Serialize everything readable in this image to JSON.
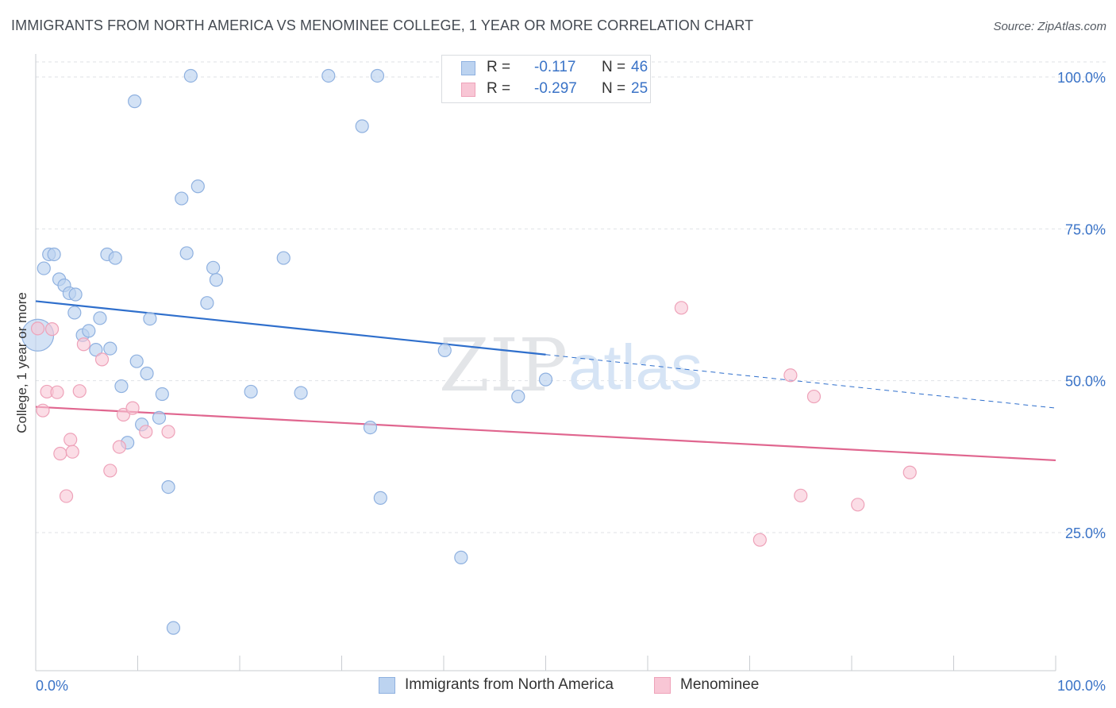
{
  "header": {
    "title": "IMMIGRANTS FROM NORTH AMERICA VS MENOMINEE COLLEGE, 1 YEAR OR MORE CORRELATION CHART",
    "source": "Source: ZipAtlas.com"
  },
  "watermark": {
    "zip": "ZIP",
    "atlas": "atlas"
  },
  "stats": {
    "r_label": "R =",
    "n_label": "N =",
    "rows": [
      {
        "r": "-0.117",
        "n": "46"
      },
      {
        "r": "-0.297",
        "n": "25"
      }
    ]
  },
  "legend": {
    "items": [
      {
        "label": "Immigrants from North America"
      },
      {
        "label": "Menominee"
      }
    ]
  },
  "colors": {
    "blue_fill": "#bcd3f0",
    "blue_stroke": "#8fb1e0",
    "blue_line": "#2f6fcc",
    "pink_fill": "#f8c6d5",
    "pink_stroke": "#eea2b9",
    "pink_line": "#e0668f",
    "tick_label": "#3a73c7",
    "grid": "#dfe2e6"
  },
  "chart_data": {
    "type": "scatter",
    "title": "IMMIGRANTS FROM NORTH AMERICA VS MENOMINEE COLLEGE, 1 YEAR OR MORE CORRELATION CHART",
    "xlabel": "",
    "ylabel": "College, 1 year or more",
    "xlim": [
      0,
      100
    ],
    "ylim": [
      0,
      102
    ],
    "x_tick_labels": [
      "0.0%",
      "100.0%"
    ],
    "y_ticks": [
      {
        "value": 25,
        "label": "25.0%"
      },
      {
        "value": 50,
        "label": "50.0%"
      },
      {
        "value": 75,
        "label": "75.0%"
      },
      {
        "value": 100,
        "label": "100.0%"
      }
    ],
    "grid": "horizontal dashed",
    "legend_position": "bottom-center",
    "series": [
      {
        "name": "Immigrants from North America",
        "r": -0.117,
        "n": 46,
        "trend": {
          "x0": 0,
          "y0": 63.1,
          "x1": 50,
          "y1": 54.3,
          "dashed_to_x": 100,
          "dashed_y1": 45.5
        },
        "points": [
          {
            "x": 0.2,
            "y": 57.5,
            "size": "large"
          },
          {
            "x": 0.8,
            "y": 68.5
          },
          {
            "x": 1.3,
            "y": 70.8
          },
          {
            "x": 1.8,
            "y": 70.8
          },
          {
            "x": 2.3,
            "y": 66.7
          },
          {
            "x": 2.8,
            "y": 65.7
          },
          {
            "x": 3.3,
            "y": 64.4
          },
          {
            "x": 3.9,
            "y": 64.2
          },
          {
            "x": 3.8,
            "y": 61.2
          },
          {
            "x": 4.6,
            "y": 57.5
          },
          {
            "x": 5.2,
            "y": 58.2
          },
          {
            "x": 5.9,
            "y": 55.1
          },
          {
            "x": 6.3,
            "y": 60.3
          },
          {
            "x": 7.0,
            "y": 70.8
          },
          {
            "x": 7.8,
            "y": 70.2
          },
          {
            "x": 7.3,
            "y": 55.3
          },
          {
            "x": 8.4,
            "y": 49.1
          },
          {
            "x": 9.0,
            "y": 39.8
          },
          {
            "x": 9.7,
            "y": 96.0
          },
          {
            "x": 9.9,
            "y": 53.2
          },
          {
            "x": 10.4,
            "y": 42.8
          },
          {
            "x": 10.9,
            "y": 51.2
          },
          {
            "x": 11.2,
            "y": 60.2
          },
          {
            "x": 12.1,
            "y": 43.9
          },
          {
            "x": 12.4,
            "y": 47.8
          },
          {
            "x": 13.0,
            "y": 32.5
          },
          {
            "x": 13.5,
            "y": 9.3
          },
          {
            "x": 14.3,
            "y": 80.0
          },
          {
            "x": 14.8,
            "y": 71.0
          },
          {
            "x": 15.2,
            "y": 100.2
          },
          {
            "x": 15.9,
            "y": 82.0
          },
          {
            "x": 16.8,
            "y": 62.8
          },
          {
            "x": 17.4,
            "y": 68.6
          },
          {
            "x": 17.7,
            "y": 66.6
          },
          {
            "x": 21.1,
            "y": 48.2
          },
          {
            "x": 24.3,
            "y": 70.2
          },
          {
            "x": 26.0,
            "y": 48.0
          },
          {
            "x": 28.7,
            "y": 100.2
          },
          {
            "x": 32.0,
            "y": 91.9
          },
          {
            "x": 32.8,
            "y": 42.3
          },
          {
            "x": 33.5,
            "y": 100.2
          },
          {
            "x": 33.8,
            "y": 30.7
          },
          {
            "x": 40.1,
            "y": 55.0
          },
          {
            "x": 41.7,
            "y": 20.9
          },
          {
            "x": 47.3,
            "y": 47.4
          },
          {
            "x": 50.0,
            "y": 50.2
          }
        ]
      },
      {
        "name": "Menominee",
        "r": -0.297,
        "n": 25,
        "trend": {
          "x0": 0,
          "y0": 45.7,
          "x1": 100,
          "y1": 36.9
        },
        "points": [
          {
            "x": 0.2,
            "y": 58.6
          },
          {
            "x": 0.7,
            "y": 45.1
          },
          {
            "x": 1.1,
            "y": 48.2
          },
          {
            "x": 1.6,
            "y": 58.5
          },
          {
            "x": 2.1,
            "y": 48.1
          },
          {
            "x": 2.4,
            "y": 38.0
          },
          {
            "x": 3.0,
            "y": 31.0
          },
          {
            "x": 3.4,
            "y": 40.3
          },
          {
            "x": 3.6,
            "y": 38.3
          },
          {
            "x": 4.3,
            "y": 48.3
          },
          {
            "x": 4.7,
            "y": 56.0
          },
          {
            "x": 6.5,
            "y": 53.5
          },
          {
            "x": 7.3,
            "y": 35.2
          },
          {
            "x": 8.2,
            "y": 39.1
          },
          {
            "x": 8.6,
            "y": 44.4
          },
          {
            "x": 9.5,
            "y": 45.5
          },
          {
            "x": 10.8,
            "y": 41.6
          },
          {
            "x": 13.0,
            "y": 41.6
          },
          {
            "x": 63.3,
            "y": 62.0
          },
          {
            "x": 71.0,
            "y": 23.8
          },
          {
            "x": 74.0,
            "y": 50.9
          },
          {
            "x": 75.0,
            "y": 31.1
          },
          {
            "x": 76.3,
            "y": 47.4
          },
          {
            "x": 80.6,
            "y": 29.6
          },
          {
            "x": 85.7,
            "y": 34.9
          }
        ]
      }
    ]
  }
}
